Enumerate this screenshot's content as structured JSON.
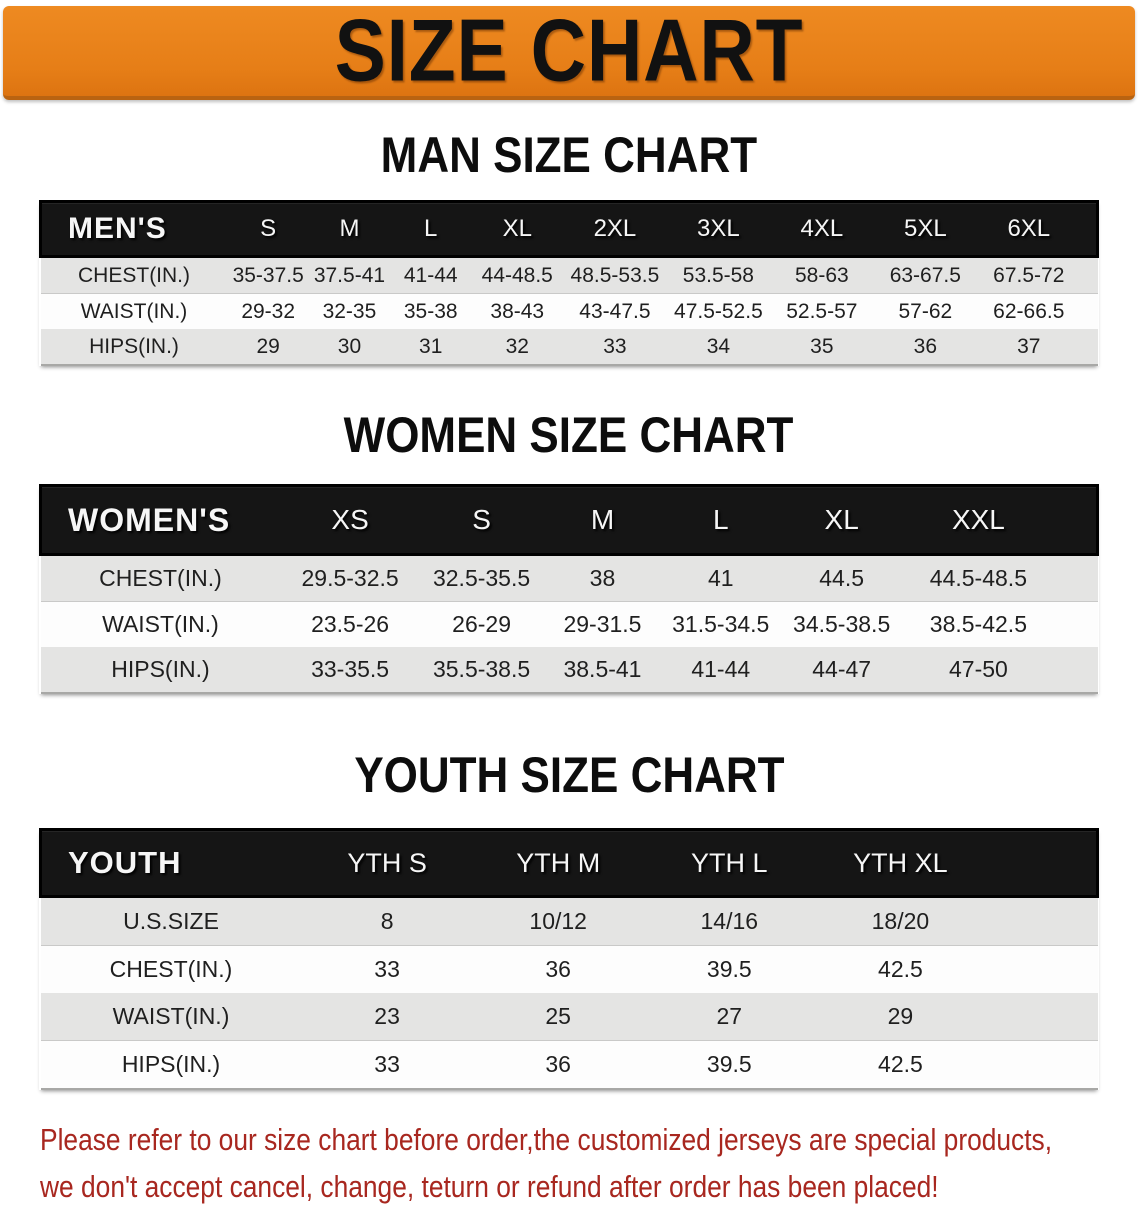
{
  "banner": {
    "title": "SIZE CHART"
  },
  "colors": {
    "banner_orange": "#e67e17",
    "table_header_black": "#151515",
    "row_gray": "#e4e4e3",
    "row_white": "#fdfdfd",
    "notice_red": "#a8271f"
  },
  "sections": [
    {
      "heading": "MAN SIZE CHART",
      "table": {
        "header_label": "MEN'S",
        "columns": [
          "S",
          "M",
          "L",
          "XL",
          "2XL",
          "3XL",
          "4XL",
          "5XL",
          "6XL"
        ],
        "rows": [
          {
            "label": "CHEST(IN.)",
            "values": [
              "35-37.5",
              "37.5-41",
              "41-44",
              "44-48.5",
              "48.5-53.5",
              "53.5-58",
              "58-63",
              "63-67.5",
              "67.5-72"
            ]
          },
          {
            "label": "WAIST(IN.)",
            "values": [
              "29-32",
              "32-35",
              "35-38",
              "38-43",
              "43-47.5",
              "47.5-52.5",
              "52.5-57",
              "57-62",
              "62-66.5"
            ]
          },
          {
            "label": "HIPS(IN.)",
            "values": [
              "29",
              "30",
              "31",
              "32",
              "33",
              "34",
              "35",
              "36",
              "37"
            ]
          }
        ]
      }
    },
    {
      "heading": "WOMEN SIZE CHART",
      "table": {
        "header_label": "WOMEN'S",
        "columns": [
          "XS",
          "S",
          "M",
          "L",
          "XL",
          "XXL"
        ],
        "rows": [
          {
            "label": "CHEST(IN.)",
            "values": [
              "29.5-32.5",
              "32.5-35.5",
              "38",
              "41",
              "44.5",
              "44.5-48.5"
            ]
          },
          {
            "label": "WAIST(IN.)",
            "values": [
              "23.5-26",
              "26-29",
              "29-31.5",
              "31.5-34.5",
              "34.5-38.5",
              "38.5-42.5"
            ]
          },
          {
            "label": "HIPS(IN.)",
            "values": [
              "33-35.5",
              "35.5-38.5",
              "38.5-41",
              "41-44",
              "44-47",
              "47-50"
            ]
          }
        ]
      }
    },
    {
      "heading": "YOUTH SIZE CHART",
      "table": {
        "header_label": "YOUTH",
        "columns": [
          "YTH S",
          "YTH M",
          "YTH L",
          "YTH XL"
        ],
        "rows": [
          {
            "label": "U.S.SIZE",
            "values": [
              "8",
              "10/12",
              "14/16",
              "18/20"
            ]
          },
          {
            "label": "CHEST(IN.)",
            "values": [
              "33",
              "36",
              "39.5",
              "42.5"
            ]
          },
          {
            "label": "WAIST(IN.)",
            "values": [
              "23",
              "25",
              "27",
              "29"
            ]
          },
          {
            "label": "HIPS(IN.)",
            "values": [
              "33",
              "36",
              "39.5",
              "42.5"
            ]
          }
        ]
      }
    }
  ],
  "footer": {
    "line1": "Please refer to our size chart before order,the customized jerseys are special products,",
    "line2": "we don't accept cancel, change, teturn or refund after order has been placed!"
  }
}
